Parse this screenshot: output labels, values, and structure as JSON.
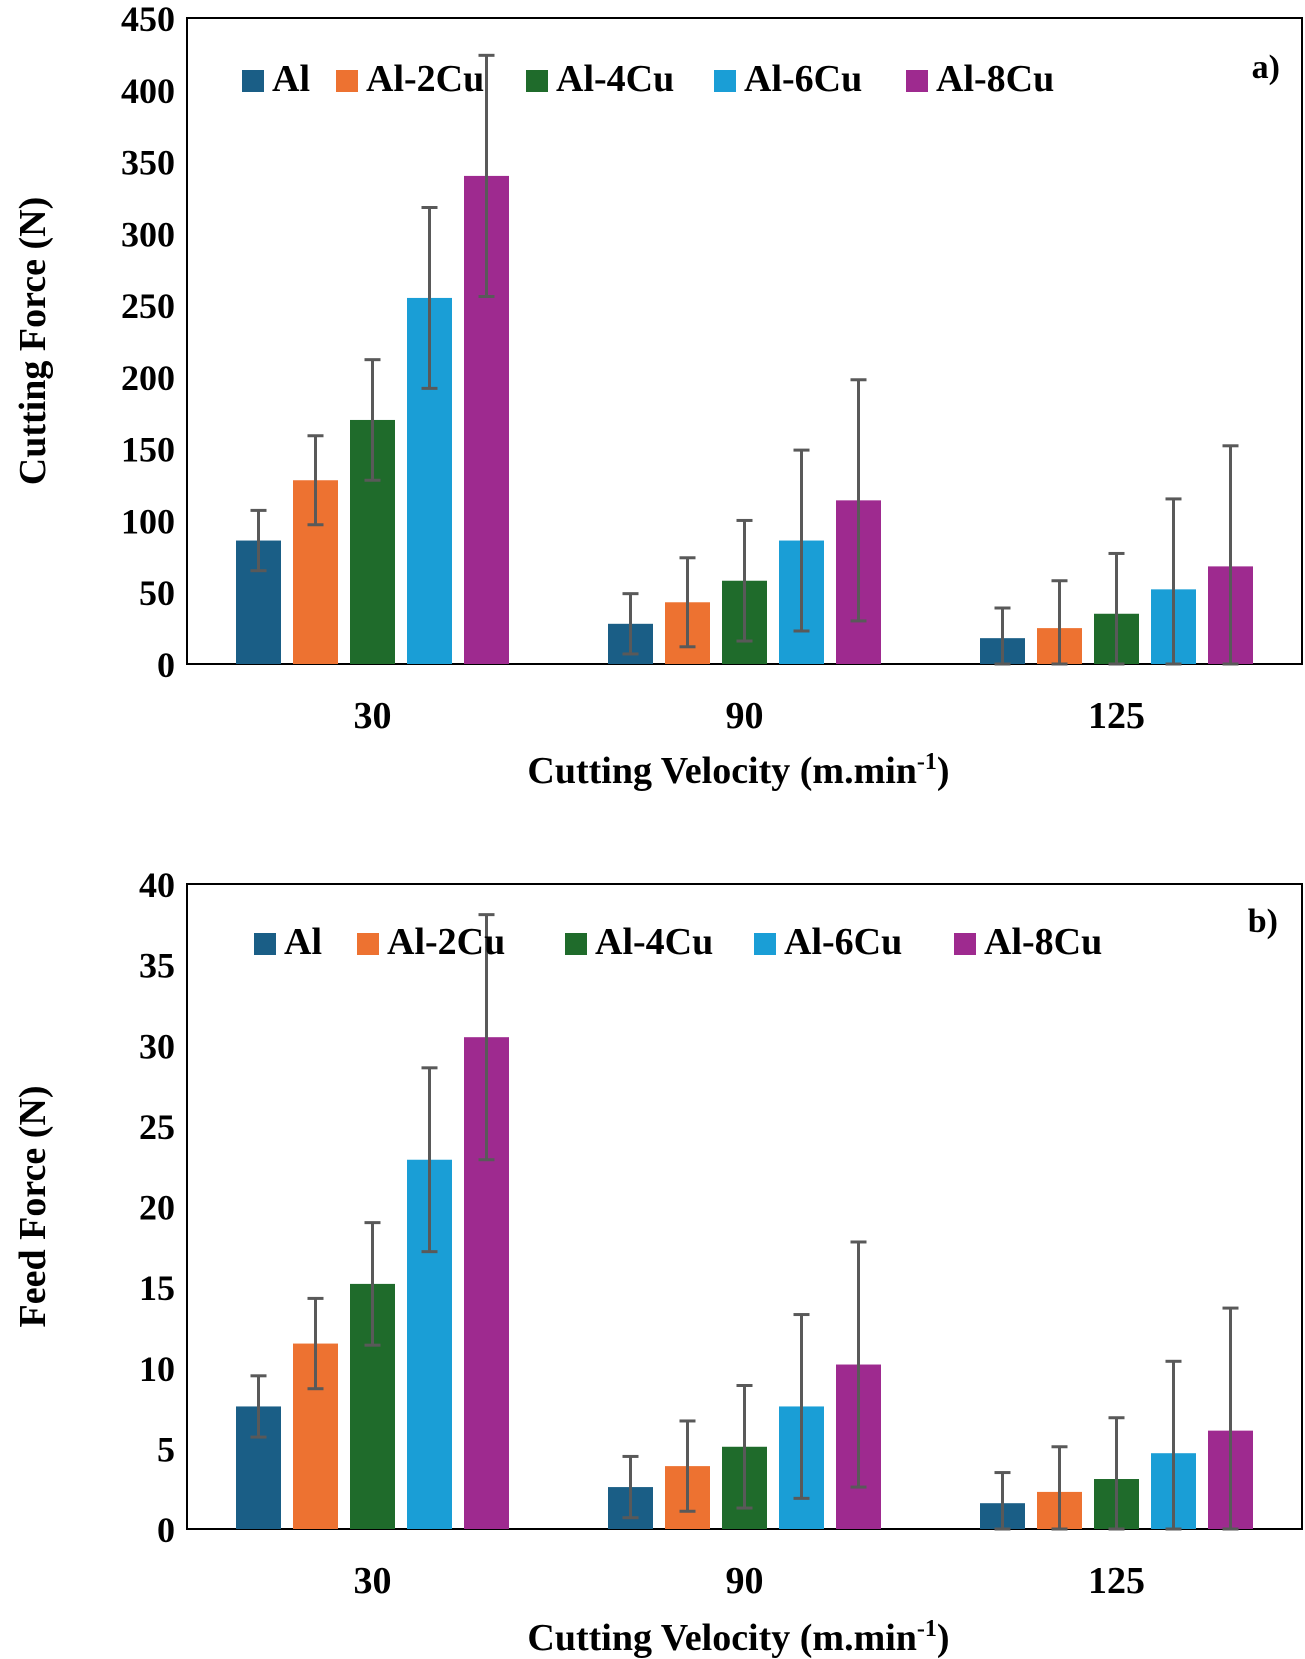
{
  "chart_data": [
    {
      "type": "bar",
      "panel_label": "a)",
      "categories": [
        "30",
        "90",
        "125"
      ],
      "xlabel": "Cutting Velocity (m.min",
      "xlabel_sup": "-1",
      "xlabel_close": ")",
      "ylabel": "Cutting Force (N)",
      "ylim": [
        0,
        450
      ],
      "yticks": [
        0,
        50,
        100,
        150,
        200,
        250,
        300,
        350,
        400,
        450
      ],
      "legend_position": "top",
      "series": [
        {
          "name": "Al",
          "color": "#1a5e86",
          "values": [
            86,
            28,
            18
          ],
          "errors": [
            21,
            21,
            21
          ]
        },
        {
          "name": "Al-2Cu",
          "color": "#ed7231",
          "values": [
            128,
            43,
            25
          ],
          "errors": [
            31,
            31,
            33
          ]
        },
        {
          "name": "Al-4Cu",
          "color": "#1f6b2b",
          "values": [
            170,
            58,
            35
          ],
          "errors": [
            42,
            42,
            42
          ]
        },
        {
          "name": "Al-6Cu",
          "color": "#1a9ed6",
          "values": [
            255,
            86,
            52
          ],
          "errors": [
            63,
            63,
            63
          ]
        },
        {
          "name": "Al-8Cu",
          "color": "#9e2a8f",
          "values": [
            340,
            114,
            68
          ],
          "errors": [
            84,
            84,
            84
          ]
        }
      ]
    },
    {
      "type": "bar",
      "panel_label": "b)",
      "categories": [
        "30",
        "90",
        "125"
      ],
      "xlabel": "Cutting Velocity (m.min",
      "xlabel_sup": "-1",
      "xlabel_close": ")",
      "ylabel": "Feed  Force (N)",
      "ylim": [
        0,
        40
      ],
      "yticks": [
        0,
        5,
        10,
        15,
        20,
        25,
        30,
        35,
        40
      ],
      "legend_position": "top",
      "series": [
        {
          "name": "Al",
          "color": "#1a5e86",
          "values": [
            7.6,
            2.6,
            1.6
          ],
          "errors": [
            1.9,
            1.9,
            1.9
          ]
        },
        {
          "name": "Al-2Cu",
          "color": "#ed7231",
          "values": [
            11.5,
            3.9,
            2.3
          ],
          "errors": [
            2.8,
            2.8,
            2.8
          ]
        },
        {
          "name": "Al-4Cu",
          "color": "#1f6b2b",
          "values": [
            15.2,
            5.1,
            3.1
          ],
          "errors": [
            3.8,
            3.8,
            3.8
          ]
        },
        {
          "name": "Al-6Cu",
          "color": "#1a9ed6",
          "values": [
            22.9,
            7.6,
            4.7
          ],
          "errors": [
            5.7,
            5.7,
            5.7
          ]
        },
        {
          "name": "Al-8Cu",
          "color": "#9e2a8f",
          "values": [
            30.5,
            10.2,
            6.1
          ],
          "errors": [
            7.6,
            7.6,
            7.6
          ]
        }
      ]
    }
  ]
}
